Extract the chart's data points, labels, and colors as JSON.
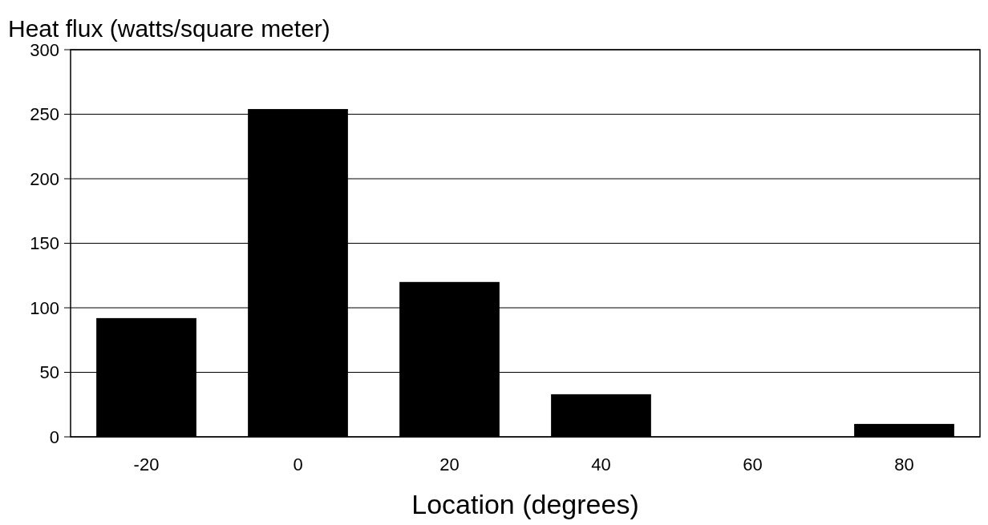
{
  "chart_data": {
    "type": "bar",
    "ylabel": "Heat flux (watts/square meter)",
    "xlabel": "Location (degrees)",
    "categories": [
      "-20",
      "0",
      "20",
      "40",
      "60",
      "80"
    ],
    "values": [
      92,
      254,
      120,
      33,
      0,
      10
    ],
    "color": "#000000",
    "ylim": [
      0,
      300
    ],
    "yticks": [
      0,
      50,
      100,
      150,
      200,
      250,
      300
    ],
    "grid": "y"
  }
}
